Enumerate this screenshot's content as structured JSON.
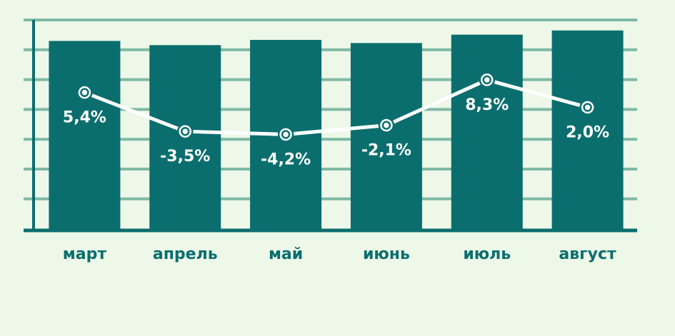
{
  "chart_data": {
    "type": "bar",
    "categories": [
      "март",
      "апрель",
      "май",
      "июнь",
      "июль",
      "август"
    ],
    "series": [
      {
        "type": "bar",
        "values": [
          90,
          88,
          90.5,
          89,
          93,
          95
        ]
      },
      {
        "type": "line",
        "values": [
          5.4,
          -3.5,
          -4.2,
          -2.1,
          8.3,
          2.0
        ]
      }
    ],
    "line_labels": [
      "5,4%",
      "-3,5%",
      "-4,2%",
      "-2,1%",
      "8,3%",
      "2,0%"
    ],
    "bar_ylim": [
      0,
      100
    ],
    "line_ylim": [
      -26,
      22
    ],
    "grid": true,
    "colors": {
      "bar": "#0b6e6e",
      "line": "#ffffff",
      "grid": "#7fb9a6",
      "background": "#edf8e9",
      "axis": "#0b6e6e"
    }
  }
}
